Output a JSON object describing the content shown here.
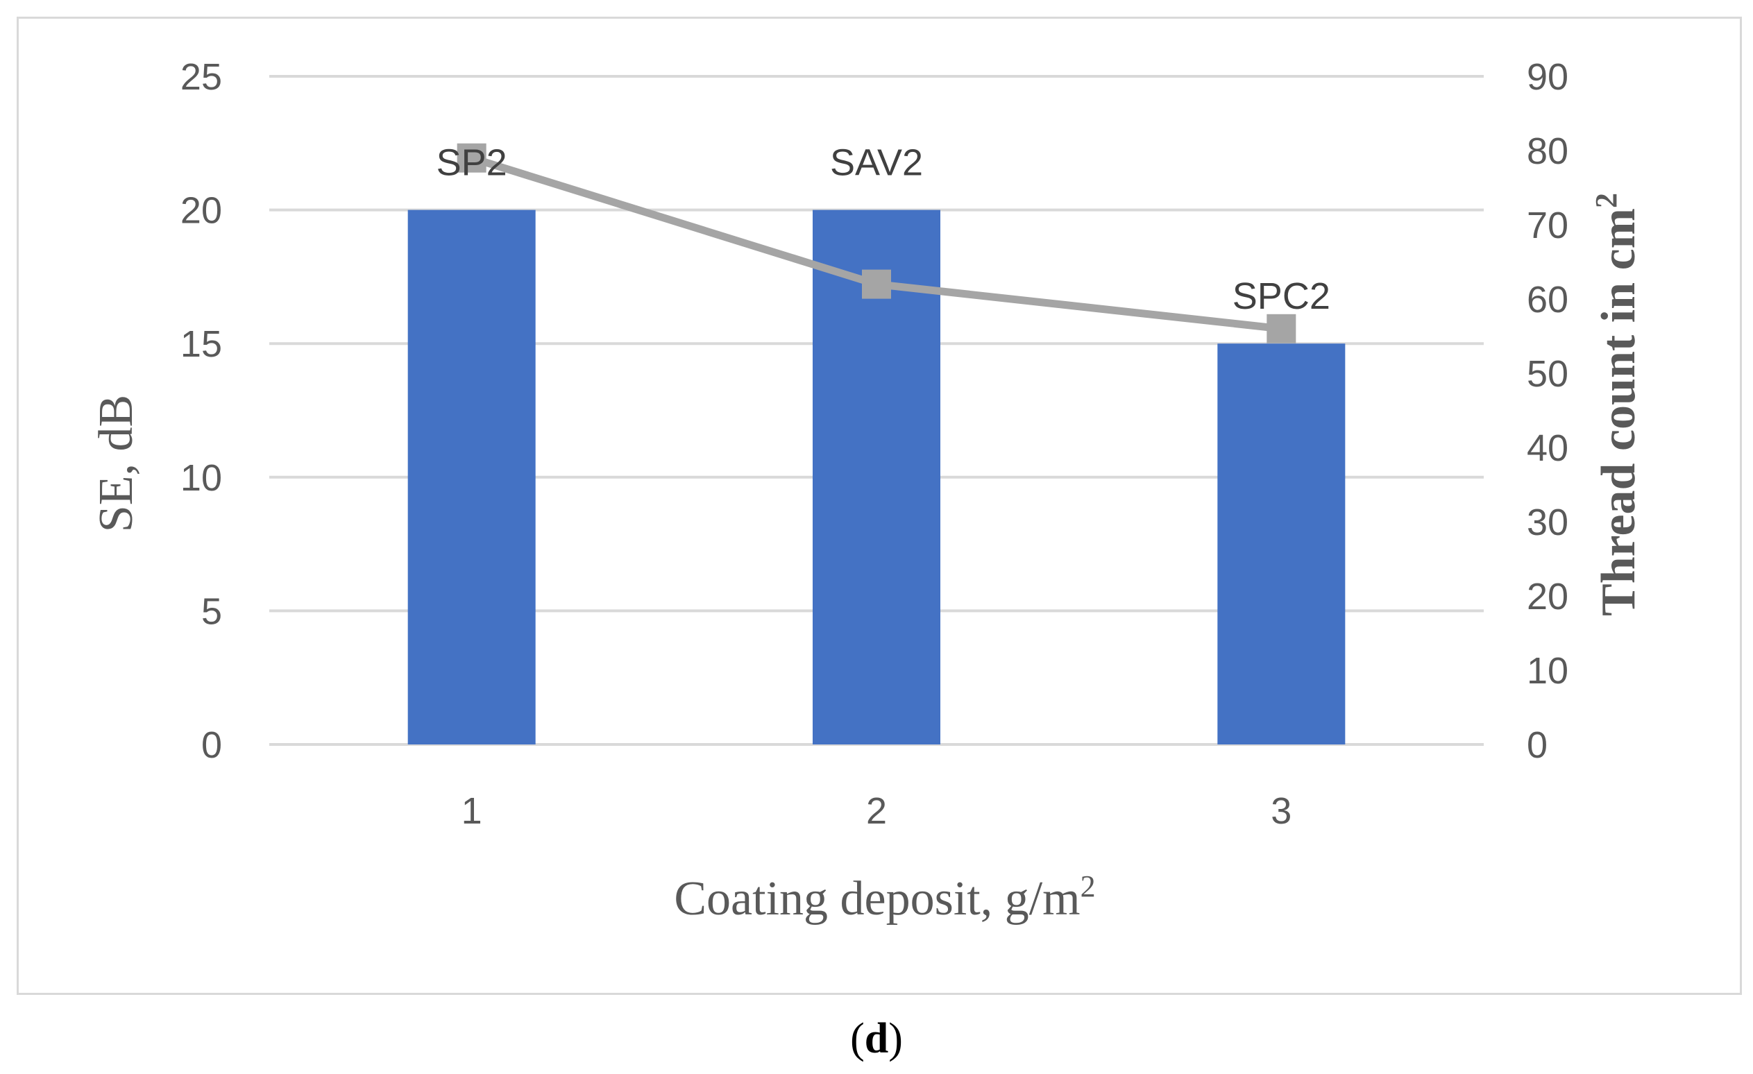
{
  "chart_data": {
    "type": "bar+line",
    "categories": [
      "1",
      "2",
      "3"
    ],
    "series": [
      {
        "name": "SE",
        "kind": "bar",
        "axis": "left",
        "values": [
          20,
          20,
          15
        ],
        "color": "#4472c4",
        "data_labels": [
          "SP2",
          "SAV2",
          "SPC2"
        ]
      },
      {
        "name": "Thread count",
        "kind": "line",
        "axis": "right",
        "values": [
          79,
          62,
          56
        ],
        "color": "#a5a5a5"
      }
    ],
    "xlabel": "Coating deposit, g/m",
    "xlabel_sup": "2",
    "ylabel": "SE, dB",
    "y2label": "Thread count in cm",
    "y2label_sup": "2",
    "ylim": [
      0,
      25
    ],
    "yticks": [
      0,
      5,
      10,
      15,
      20,
      25
    ],
    "y2lim": [
      0,
      90
    ],
    "y2ticks": [
      0,
      10,
      20,
      30,
      40,
      50,
      60,
      70,
      80,
      90
    ],
    "grid": true,
    "gridline_color": "#d9d9d9"
  },
  "caption": {
    "open": "(",
    "letter": "d",
    "close": ")"
  }
}
